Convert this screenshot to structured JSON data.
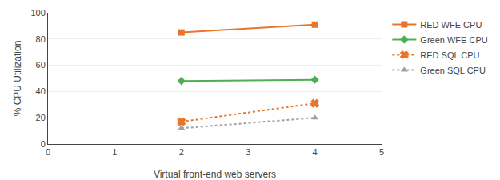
{
  "chart_data": {
    "type": "line",
    "x_label": "Virtual front-end web servers",
    "y_label": "% CPU Utilization",
    "series": [
      {
        "name": "RED WFE CPU",
        "x": [
          2,
          4
        ],
        "values": [
          85,
          91
        ],
        "color": "#E8752A",
        "marker": "square",
        "line_style": "solid"
      },
      {
        "name": "Green WFE CPU",
        "x": [
          2,
          4
        ],
        "values": [
          48,
          49
        ],
        "color": "#4CAF50",
        "marker": "diamond",
        "line_style": "solid"
      },
      {
        "name": "RED SQL CPU",
        "x": [
          2,
          4
        ],
        "values": [
          17,
          31
        ],
        "color": "#E8752A",
        "marker": "x",
        "line_style": "dotted"
      },
      {
        "name": "Green SQL CPU",
        "x": [
          2,
          4
        ],
        "values": [
          12,
          20
        ],
        "color": "#A0A0A0",
        "marker": "triangle-up",
        "line_style": "dotted"
      }
    ],
    "xlim": [
      0,
      5
    ],
    "ylim": [
      0,
      100
    ],
    "xticks": [
      0,
      1,
      2,
      3,
      4,
      5
    ],
    "yticks": [
      0,
      20,
      40,
      60,
      80,
      100
    ],
    "grid": "y",
    "legend": "right"
  }
}
